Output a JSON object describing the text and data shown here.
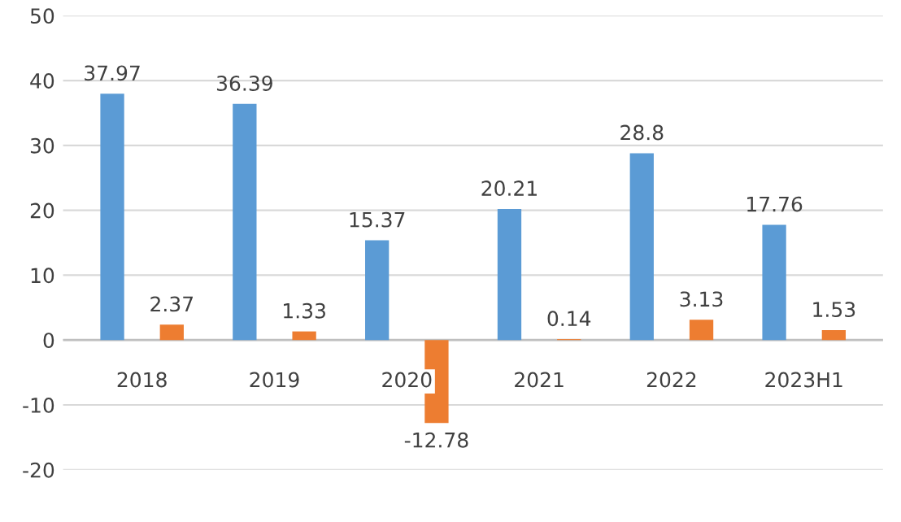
{
  "chart_data": {
    "type": "bar",
    "categories": [
      "2018",
      "2019",
      "2020",
      "2021",
      "2022",
      "2023H1"
    ],
    "series": [
      {
        "color": "#5b9bd5",
        "values": [
          37.97,
          36.39,
          15.37,
          20.21,
          28.8,
          17.76
        ]
      },
      {
        "color": "#ed7d31",
        "values": [
          2.37,
          1.33,
          -12.78,
          0.14,
          3.13,
          1.53
        ]
      }
    ],
    "ylim": [
      -20,
      50
    ],
    "yticks": [
      -20,
      -10,
      0,
      10,
      20,
      30,
      40,
      50
    ],
    "grid": "y",
    "data_labels": true
  }
}
